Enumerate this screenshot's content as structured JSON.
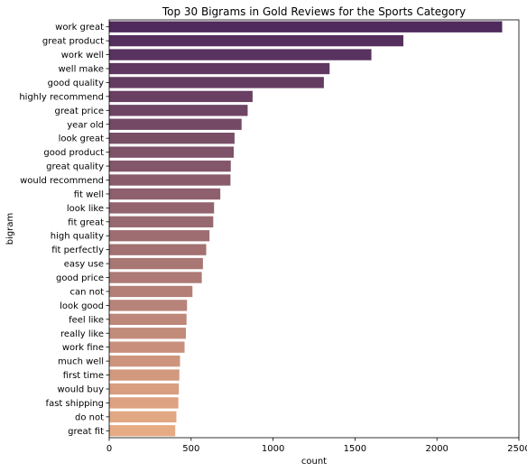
{
  "chart_data": {
    "type": "bar",
    "orientation": "horizontal",
    "title": "Top 30 Bigrams in Gold Reviews for the Sports Category",
    "xlabel": "count",
    "ylabel": "bigram",
    "xlim": [
      0,
      2500
    ],
    "xticks": [
      0,
      500,
      1000,
      1500,
      2000,
      2500
    ],
    "grid": false,
    "legend": "none",
    "palette": "flare (dark purple to light orange)",
    "color_start": "#4f2a5c",
    "color_end": "#e7ab84",
    "categories": [
      "work great",
      "great product",
      "work well",
      "well make",
      "good quality",
      "highly recommend",
      "great price",
      "year old",
      "look great",
      "good product",
      "great quality",
      "would recommend",
      "fit well",
      "look like",
      "fit great",
      "high quality",
      "fit perfectly",
      "easy use",
      "good price",
      "can not",
      "look good",
      "feel like",
      "really like",
      "work fine",
      "much well",
      "first time",
      "would buy",
      "fast shipping",
      "do not",
      "great fit"
    ],
    "values": [
      2398,
      1795,
      1600,
      1345,
      1310,
      875,
      845,
      808,
      765,
      760,
      742,
      740,
      678,
      640,
      635,
      612,
      592,
      572,
      565,
      508,
      475,
      472,
      468,
      460,
      432,
      428,
      425,
      422,
      410,
      403
    ]
  }
}
